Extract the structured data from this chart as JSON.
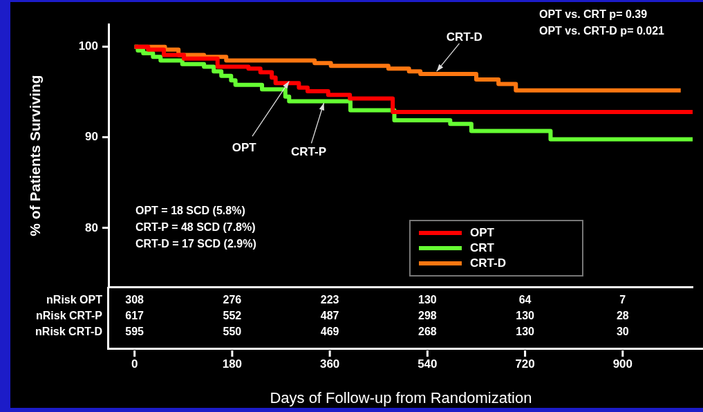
{
  "chart_data": {
    "type": "step",
    "xlabel": "Days of Follow-up from Randomization",
    "ylabel": "% of Patients Surviving",
    "xlim": [
      -48,
      1030
    ],
    "xticks": [
      0,
      180,
      360,
      540,
      720,
      900
    ],
    "ylim": [
      73.5,
      102.5
    ],
    "yticks": [
      80,
      90,
      100
    ],
    "grid": false,
    "legend": "bottom right",
    "series": [
      {
        "name": "OPT",
        "color": "#ff0000",
        "x": [
          0,
          25,
          54,
          91,
          153,
          210,
          232,
          253,
          260,
          303,
          319,
          357,
          397,
          476,
          1029
        ],
        "values": [
          100,
          99.7,
          99.1,
          98.7,
          97.8,
          97.6,
          97.2,
          96.6,
          96.0,
          95.5,
          95.1,
          94.7,
          94.3,
          92.8,
          92.8
        ]
      },
      {
        "name": "CRT",
        "color": "#66ff33",
        "x": [
          0,
          6,
          16,
          34,
          48,
          88,
          128,
          146,
          160,
          178,
          186,
          235,
          278,
          285,
          398,
          479,
          582,
          621,
          767,
          1029
        ],
        "values": [
          100,
          99.6,
          99.3,
          98.9,
          98.5,
          98.1,
          97.8,
          97.3,
          96.8,
          96.3,
          95.8,
          95.3,
          94.5,
          94.0,
          93.0,
          91.9,
          91.5,
          90.7,
          89.8,
          89.8
        ]
      },
      {
        "name": "CRT-D",
        "color": "#ff7711",
        "x": [
          0,
          56,
          81,
          128,
          169,
          332,
          362,
          468,
          506,
          527,
          630,
          671,
          703,
          1007
        ],
        "values": [
          100,
          99.7,
          99.1,
          98.9,
          98.5,
          98.2,
          97.9,
          97.6,
          97.3,
          97.0,
          96.4,
          95.9,
          95.2,
          95.2
        ]
      }
    ],
    "annotations": [
      {
        "text": "OPT",
        "x": 285,
        "y": 96.2
      },
      {
        "text": "CRT-P",
        "x": 349,
        "y": 93.8
      },
      {
        "text": "CRT-D",
        "x": 557,
        "y": 97.3
      },
      "OPT vs. CRT  p= 0.39",
      "OPT vs. CRT-D  p= 0.021",
      "OPT = 18 SCD (5.8%)",
      "CRT-P = 48 SCD (7.8%)",
      "CRT-D = 17 SCD (2.9%)",
      "nRisk OPT",
      "308",
      "276",
      "223",
      "130",
      "64",
      "7",
      "nRisk CRT-P",
      "617",
      "552",
      "487",
      "298",
      "130",
      "28",
      "nRisk CRT-D",
      "595",
      "550",
      "469",
      "268",
      "130",
      "30"
    ]
  }
}
